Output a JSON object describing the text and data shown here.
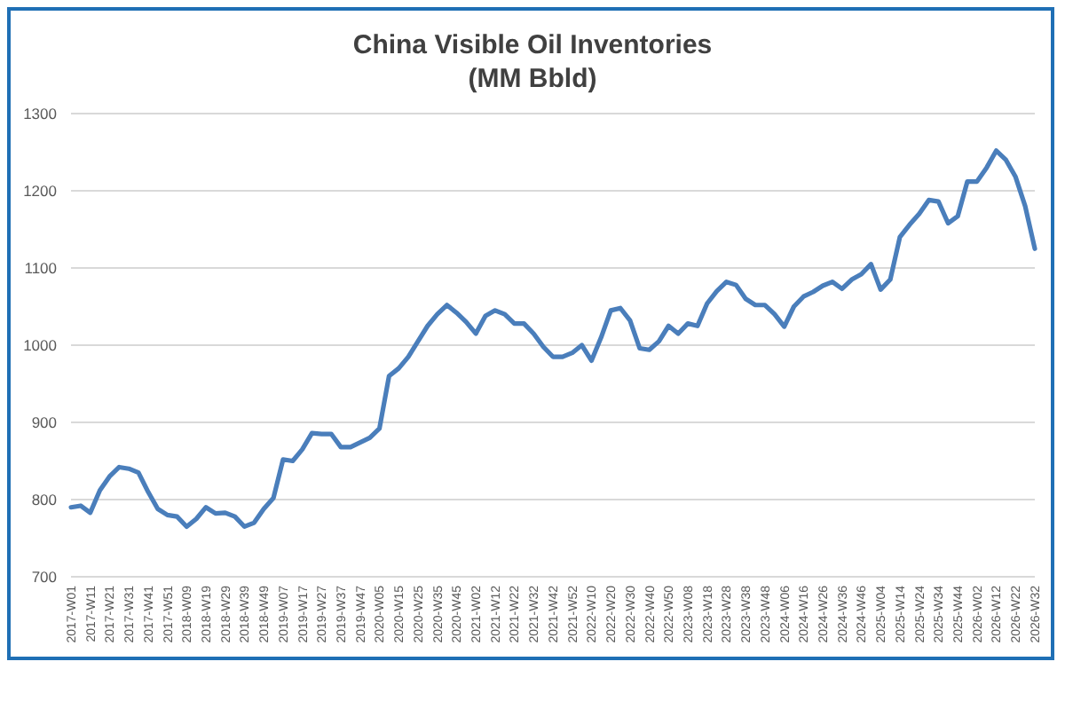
{
  "chart_data": {
    "type": "line",
    "title": "China Visible Oil Inventories",
    "subtitle": "(MM Bbld)",
    "categories": [
      "2017-W01",
      null,
      "2017-W11",
      null,
      "2017-W21",
      null,
      "2017-W31",
      null,
      "2017-W41",
      null,
      "2017-W51",
      null,
      "2018-W09",
      null,
      "2018-W19",
      null,
      "2018-W29",
      null,
      "2018-W39",
      null,
      "2018-W49",
      null,
      "2019-W07",
      null,
      "2019-W17",
      null,
      "2019-W27",
      null,
      "2019-W37",
      null,
      "2019-W47",
      null,
      "2020-W05",
      null,
      "2020-W15",
      null,
      "2020-W25",
      null,
      "2020-W35",
      null,
      "2020-W45",
      null,
      "2021-W02",
      null,
      "2021-W12",
      null,
      "2021-W22",
      null,
      "2021-W32",
      null,
      "2021-W42",
      null,
      "2021-W52",
      null,
      "2022-W10",
      null,
      "2022-W20",
      null,
      "2022-W30",
      null,
      "2022-W40",
      null,
      "2022-W50",
      null,
      "2023-W08",
      null,
      "2023-W18",
      null,
      "2023-W28",
      null,
      "2023-W38",
      null,
      "2023-W48",
      null,
      "2024-W06",
      null,
      "2024-W16",
      null,
      "2024-W26",
      null,
      "2024-W36",
      null,
      "2024-W46",
      null,
      "2025-W04",
      null,
      "2025-W14",
      null,
      "2025-W24",
      null,
      "2025-W34",
      null,
      "2025-W44",
      null,
      "2026-W02",
      null,
      "2026-W12",
      null,
      "2026-W22",
      null,
      "2026-W32"
    ],
    "series": [
      {
        "color": "#4a7ebb",
        "values": [
          790,
          792,
          783,
          812,
          830,
          842,
          840,
          835,
          810,
          788,
          780,
          778,
          765,
          775,
          790,
          782,
          783,
          778,
          765,
          770,
          788,
          802,
          852,
          850,
          865,
          886,
          885,
          885,
          868,
          868,
          874,
          880,
          892,
          960,
          970,
          985,
          1005,
          1025,
          1040,
          1052,
          1042,
          1030,
          1015,
          1038,
          1045,
          1040,
          1028,
          1028,
          1015,
          998,
          985,
          985,
          990,
          1000,
          980,
          1010,
          1045,
          1048,
          1032,
          996,
          994,
          1005,
          1025,
          1015,
          1028,
          1025,
          1054,
          1070,
          1082,
          1078,
          1060,
          1052,
          1052,
          1040,
          1024,
          1050,
          1063,
          1069,
          1077,
          1082,
          1073,
          1085,
          1092,
          1105,
          1072,
          1085,
          1140,
          1156,
          1170,
          1188,
          1186,
          1158,
          1167,
          1212,
          1212,
          1230,
          1252,
          1240,
          1218,
          1180,
          1125
        ]
      }
    ],
    "ylim": [
      700,
      1300
    ],
    "yticks": [
      700,
      800,
      900,
      1000,
      1100,
      1200,
      1300
    ],
    "grid": "y",
    "marker": "none",
    "line_style": "solid"
  }
}
